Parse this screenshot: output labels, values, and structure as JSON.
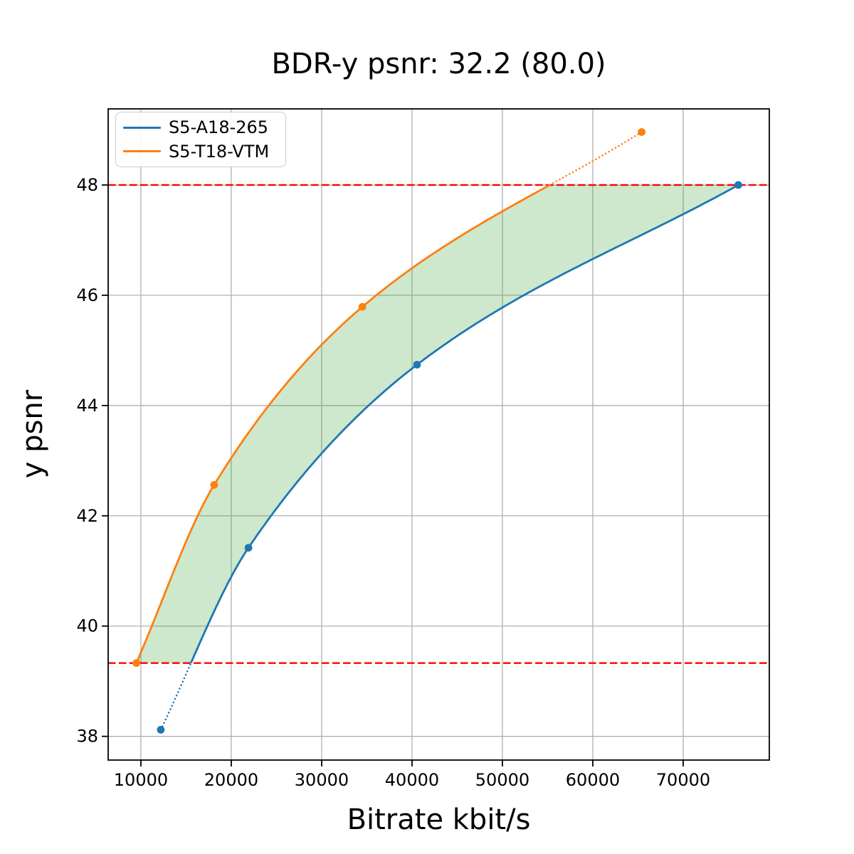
{
  "figure": {
    "background": "#ffffff"
  },
  "chart_data": {
    "type": "line",
    "title": "BDR-y psnr: 32.2 (80.0)",
    "xlabel": "Bitrate kbit/s",
    "ylabel": "y psnr",
    "xlim": [
      6380,
      79530
    ],
    "ylim": [
      37.57,
      49.38
    ],
    "x_ticks": [
      10000,
      20000,
      30000,
      40000,
      50000,
      60000,
      70000
    ],
    "y_ticks": [
      38,
      40,
      42,
      44,
      46,
      48
    ],
    "grid": true,
    "legend_position": "upper left",
    "series": [
      {
        "name": "S5-A18-265",
        "color": "#1f77b4",
        "points": [
          [
            12200,
            38.12
          ],
          [
            21900,
            41.42
          ],
          [
            40550,
            44.74
          ],
          [
            76100,
            48.0
          ]
        ]
      },
      {
        "name": "S5-T18-VTM",
        "color": "#ff7f0e",
        "points": [
          [
            9500,
            39.33
          ],
          [
            18100,
            42.56
          ],
          [
            34500,
            45.79
          ],
          [
            65400,
            48.96
          ]
        ]
      }
    ],
    "bdr_bounds": {
      "lower_psnr": 39.33,
      "upper_psnr": 48.0,
      "line_color": "#ff0000",
      "line_style": "dashed",
      "out_of_range_line_style": "dotted"
    },
    "fill_between": {
      "color": "#2ca02c",
      "opacity": 0.24
    },
    "styles": {
      "grid_color": "#b0b0b0",
      "spine_color": "#000000",
      "tick_color": "#000000",
      "tick_label_color": "#000000"
    }
  }
}
